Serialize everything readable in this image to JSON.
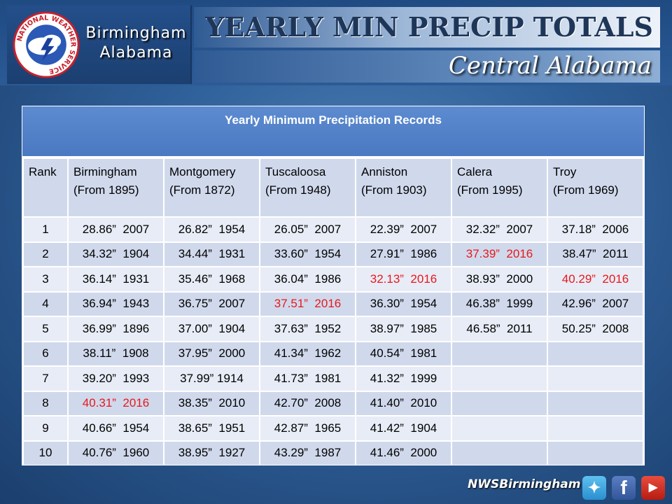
{
  "header": {
    "city_line1": "Birmingham",
    "city_line2": "Alabama",
    "title": "YEARLY MIN PRECIP TOTALS",
    "subtitle": "Central Alabama",
    "seal_ring_text": "NATIONAL WEATHER SERVICE"
  },
  "table": {
    "heading": "Yearly Minimum Precipitation Records",
    "rank_label": "Rank",
    "columns": [
      {
        "name": "Birmingham",
        "since": "(From 1895)"
      },
      {
        "name": "Montgomery",
        "since": "(From 1872)"
      },
      {
        "name": "Tuscaloosa",
        "since": "(From 1948)"
      },
      {
        "name": "Anniston",
        "since": "(From 1903)"
      },
      {
        "name": "Calera",
        "since": "(From  1995)"
      },
      {
        "name": "Troy",
        "since": "(From 1969)"
      }
    ],
    "rows": [
      {
        "rank": "1",
        "cells": [
          "28.86”  2007",
          "26.82”  1954",
          "26.05”  2007",
          "22.39”  2007",
          "32.32”  2007",
          "37.18”  2006"
        ]
      },
      {
        "rank": "2",
        "cells": [
          "34.32”  1904",
          "34.44”  1931",
          "33.60”  1954",
          "27.91”  1986",
          "37.39”  2016",
          "38.47”  2011"
        ]
      },
      {
        "rank": "3",
        "cells": [
          "36.14”  1931",
          "35.46”  1968",
          "36.04”  1986",
          "32.13”  2016",
          "38.93”  2000",
          "40.29”  2016"
        ]
      },
      {
        "rank": "4",
        "cells": [
          "36.94”  1943",
          "36.75”  2007",
          "37.51”  2016",
          "36.30”  1954",
          "46.38”  1999",
          "42.96”  2007"
        ]
      },
      {
        "rank": "5",
        "cells": [
          "36.99”  1896",
          "37.00”  1904",
          "37.63”  1952",
          "38.97”  1985",
          "46.58”  2011",
          "50.25”  2008"
        ]
      },
      {
        "rank": "6",
        "cells": [
          "38.11”  1908",
          "37.95”  2000",
          "41.34”  1962",
          "40.54”  1981",
          "",
          ""
        ]
      },
      {
        "rank": "7",
        "cells": [
          "39.20”  1993",
          "37.99” 1914",
          "41.73”  1981",
          "41.32”  1999",
          "",
          ""
        ]
      },
      {
        "rank": "8",
        "cells": [
          "40.31”  2016",
          "38.35”  2010",
          "42.70”  2008",
          "41.40”  2010",
          "",
          ""
        ]
      },
      {
        "rank": "9",
        "cells": [
          "40.66”  1954",
          "38.65”  1951",
          "42.87”  1965",
          "41.42”  1904",
          "",
          ""
        ]
      },
      {
        "rank": "10",
        "cells": [
          "40.76”  1960",
          "38.95”  1927",
          "43.29”  1987",
          "41.46”  2000",
          "",
          ""
        ]
      }
    ],
    "highlight_year": "2016",
    "highlight_color": "#e8181b"
  },
  "footer": {
    "handle": "NWSBirmingham",
    "icons": [
      "twitter-icon",
      "facebook-icon",
      "youtube-icon"
    ]
  }
}
